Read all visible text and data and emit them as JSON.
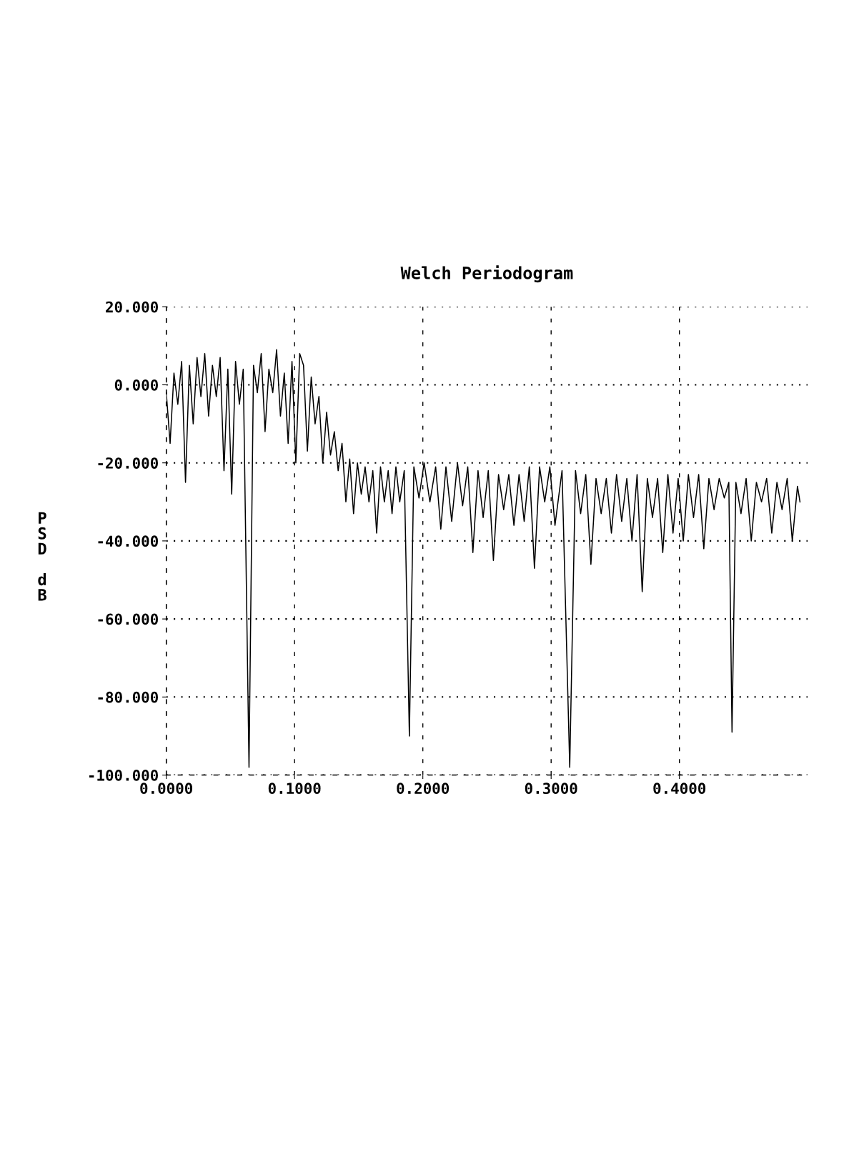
{
  "chart_data": {
    "type": "line",
    "title": "Welch Periodogram",
    "ylabel": "PSD dB",
    "x": [
      0.0,
      0.003,
      0.006,
      0.009,
      0.012,
      0.015,
      0.018,
      0.021,
      0.024,
      0.027,
      0.03,
      0.033,
      0.036,
      0.039,
      0.042,
      0.045,
      0.048,
      0.051,
      0.054,
      0.057,
      0.06,
      0.0645,
      0.068,
      0.071,
      0.074,
      0.077,
      0.08,
      0.083,
      0.086,
      0.089,
      0.092,
      0.095,
      0.098,
      0.101,
      0.104,
      0.107,
      0.11,
      0.113,
      0.116,
      0.119,
      0.122,
      0.125,
      0.128,
      0.131,
      0.134,
      0.137,
      0.14,
      0.143,
      0.146,
      0.149,
      0.152,
      0.155,
      0.158,
      0.161,
      0.164,
      0.167,
      0.17,
      0.173,
      0.176,
      0.179,
      0.182,
      0.1855,
      0.1895,
      0.193,
      0.197,
      0.201,
      0.2055,
      0.21,
      0.214,
      0.218,
      0.2225,
      0.227,
      0.231,
      0.235,
      0.239,
      0.243,
      0.247,
      0.251,
      0.255,
      0.259,
      0.263,
      0.267,
      0.271,
      0.275,
      0.279,
      0.283,
      0.287,
      0.291,
      0.295,
      0.299,
      0.303,
      0.3085,
      0.3145,
      0.319,
      0.323,
      0.327,
      0.331,
      0.335,
      0.339,
      0.343,
      0.347,
      0.351,
      0.355,
      0.359,
      0.363,
      0.367,
      0.371,
      0.375,
      0.379,
      0.383,
      0.387,
      0.391,
      0.395,
      0.399,
      0.403,
      0.407,
      0.411,
      0.415,
      0.419,
      0.423,
      0.427,
      0.431,
      0.435,
      0.4385,
      0.441,
      0.444,
      0.448,
      0.452,
      0.456,
      0.46,
      0.464,
      0.468,
      0.472,
      0.476,
      0.48,
      0.484,
      0.488,
      0.492,
      0.494
    ],
    "series": [
      {
        "color": "#000000",
        "values": [
          -2,
          -15,
          3,
          -5,
          6,
          -25,
          5,
          -10,
          7,
          -3,
          8,
          -8,
          5,
          -3,
          7,
          -22,
          4,
          -28,
          6,
          -5,
          4,
          -98,
          5,
          -2,
          8,
          -12,
          4,
          -2,
          9,
          -8,
          3,
          -15,
          6,
          -20,
          8,
          5,
          -17,
          2,
          -10,
          -3,
          -20,
          -7,
          -18,
          -12,
          -22,
          -15,
          -30,
          -19,
          -33,
          -20,
          -28,
          -21,
          -30,
          -22,
          -38,
          -21,
          -30,
          -22,
          -33,
          -21,
          -30,
          -22,
          -90,
          -21,
          -29,
          -20,
          -30,
          -21,
          -37,
          -21,
          -35,
          -20,
          -31,
          -21,
          -43,
          -22,
          -34,
          -22,
          -45,
          -23,
          -32,
          -23,
          -36,
          -23,
          -35,
          -21,
          -47,
          -21,
          -30,
          -21,
          -36,
          -22,
          -98,
          -22,
          -33,
          -23,
          -46,
          -24,
          -33,
          -24,
          -38,
          -23,
          -35,
          -24,
          -40,
          -23,
          -53,
          -24,
          -34,
          -24,
          -43,
          -23,
          -38,
          -24,
          -40,
          -23,
          -34,
          -23,
          -42,
          -24,
          -32,
          -24,
          -29,
          -25,
          -89,
          -25,
          -33,
          -24,
          -40,
          -25,
          -30,
          -24,
          -38,
          -25,
          -32,
          -24,
          -40,
          -26,
          -30
        ]
      }
    ],
    "xlim": [
      0,
      0.5
    ],
    "ylim": [
      -100,
      20
    ],
    "xticks": [
      {
        "value": 0,
        "label": "0.0000"
      },
      {
        "value": 0.1,
        "label": "0.1000"
      },
      {
        "value": 0.2,
        "label": "0.2000"
      },
      {
        "value": 0.3,
        "label": "0.3000"
      },
      {
        "value": 0.4,
        "label": "0.4000"
      }
    ],
    "yticks": [
      {
        "value": -100,
        "label": "-100.000"
      },
      {
        "value": -80,
        "label": "-80.000"
      },
      {
        "value": -60,
        "label": "-60.000"
      },
      {
        "value": -40,
        "label": "-40.000"
      },
      {
        "value": -20,
        "label": "-20.000"
      },
      {
        "value": 0,
        "label": "0.000"
      },
      {
        "value": 20,
        "label": "20.000"
      }
    ],
    "grid": true,
    "legend": false,
    "marker": "none",
    "line_style": "solid"
  }
}
